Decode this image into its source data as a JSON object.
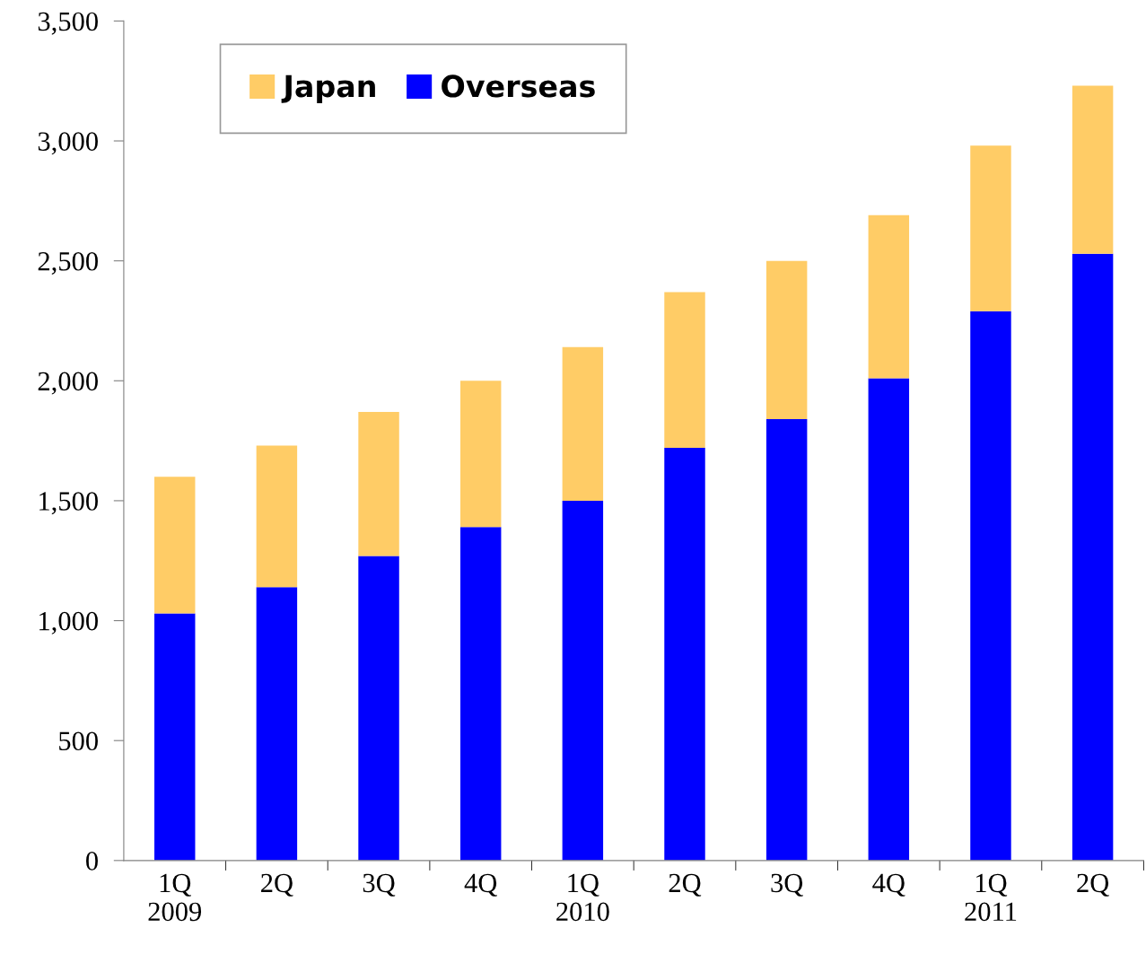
{
  "chart_data": {
    "type": "bar",
    "stacked": true,
    "categories": [
      "1Q\n2009",
      "2Q",
      "3Q",
      "4Q",
      "1Q\n2010",
      "2Q",
      "3Q",
      "4Q",
      "1Q\n2011",
      "2Q"
    ],
    "series": [
      {
        "name": "Overseas",
        "color": "#0000ff",
        "values": [
          1030,
          1140,
          1270,
          1390,
          1500,
          1720,
          1840,
          2010,
          2290,
          2530
        ]
      },
      {
        "name": "Japan",
        "color": "#ffcc66",
        "values": [
          570,
          590,
          600,
          610,
          640,
          650,
          660,
          680,
          690,
          700
        ]
      }
    ],
    "ylim": [
      0,
      3500
    ],
    "yticks": [
      {
        "value": 0,
        "label": "0"
      },
      {
        "value": 500,
        "label": "500"
      },
      {
        "value": 1000,
        "label": "1,000"
      },
      {
        "value": 1500,
        "label": "1,500"
      },
      {
        "value": 2000,
        "label": "2,000"
      },
      {
        "value": 2500,
        "label": "2,500"
      },
      {
        "value": 3000,
        "label": "3,000"
      },
      {
        "value": 3500,
        "label": "3,500"
      }
    ],
    "grid": false,
    "legend": "top left"
  }
}
